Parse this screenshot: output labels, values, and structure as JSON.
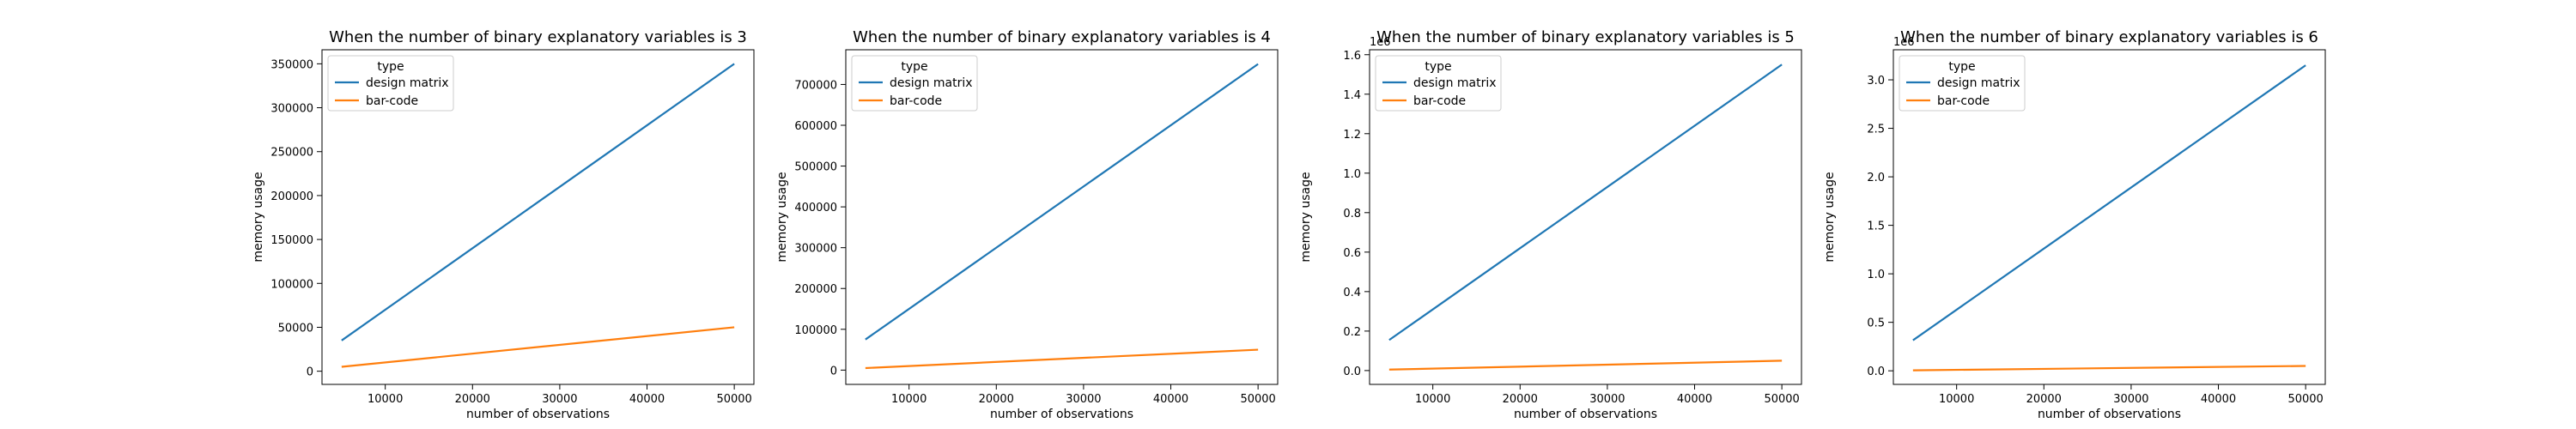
{
  "chart_data": [
    {
      "type": "line",
      "title": "When the number of binary explanatory variables is 3",
      "xlabel": "number of observations",
      "ylabel": "memory usage",
      "offset_text": "",
      "xlim": [
        2750,
        52250
      ],
      "ylim": [
        -15000,
        366000
      ],
      "xticks": [
        10000,
        20000,
        30000,
        40000,
        50000
      ],
      "xtick_labels": [
        "10000",
        "20000",
        "30000",
        "40000",
        "50000"
      ],
      "yticks": [
        0,
        50000,
        100000,
        150000,
        200000,
        250000,
        300000,
        350000
      ],
      "ytick_labels": [
        "0",
        "50000",
        "100000",
        "150000",
        "200000",
        "250000",
        "300000",
        "350000"
      ],
      "legend": {
        "title": "type",
        "placement": "upper-left"
      },
      "grid": false,
      "series": [
        {
          "name": "design matrix",
          "color": "#1f77b4",
          "x": [
            5000,
            50000
          ],
          "y": [
            35000,
            350000
          ]
        },
        {
          "name": "bar-code",
          "color": "#ff7f0e",
          "x": [
            5000,
            50000
          ],
          "y": [
            5000,
            50000
          ]
        }
      ]
    },
    {
      "type": "line",
      "title": "When the number of binary explanatory variables is 4",
      "xlabel": "number of observations",
      "ylabel": "memory usage",
      "offset_text": "",
      "xlim": [
        2750,
        52250
      ],
      "ylim": [
        -35000,
        785000
      ],
      "xticks": [
        10000,
        20000,
        30000,
        40000,
        50000
      ],
      "xtick_labels": [
        "10000",
        "20000",
        "30000",
        "40000",
        "50000"
      ],
      "yticks": [
        0,
        100000,
        200000,
        300000,
        400000,
        500000,
        600000,
        700000
      ],
      "ytick_labels": [
        "0",
        "100000",
        "200000",
        "300000",
        "400000",
        "500000",
        "600000",
        "700000"
      ],
      "legend": {
        "title": "type",
        "placement": "upper-left"
      },
      "grid": false,
      "series": [
        {
          "name": "design matrix",
          "color": "#1f77b4",
          "x": [
            5000,
            50000
          ],
          "y": [
            75000,
            750000
          ]
        },
        {
          "name": "bar-code",
          "color": "#ff7f0e",
          "x": [
            5000,
            50000
          ],
          "y": [
            5000,
            50000
          ]
        }
      ]
    },
    {
      "type": "line",
      "title": "When the number of binary explanatory variables is 5",
      "xlabel": "number of observations",
      "ylabel": "memory usage",
      "offset_text": "1e6",
      "xlim": [
        2750,
        52250
      ],
      "ylim": [
        -0.07,
        1.625
      ],
      "xticks": [
        10000,
        20000,
        30000,
        40000,
        50000
      ],
      "xtick_labels": [
        "10000",
        "20000",
        "30000",
        "40000",
        "50000"
      ],
      "yticks": [
        0.0,
        0.2,
        0.4,
        0.6,
        0.8,
        1.0,
        1.2,
        1.4,
        1.6
      ],
      "ytick_labels": [
        "0.0",
        "0.2",
        "0.4",
        "0.6",
        "0.8",
        "1.0",
        "1.2",
        "1.4",
        "1.6"
      ],
      "legend": {
        "title": "type",
        "placement": "upper-left"
      },
      "grid": false,
      "series": [
        {
          "name": "design matrix",
          "color": "#1f77b4",
          "x": [
            5000,
            50000
          ],
          "y": [
            0.155,
            1.55
          ]
        },
        {
          "name": "bar-code",
          "color": "#ff7f0e",
          "x": [
            5000,
            50000
          ],
          "y": [
            0.005,
            0.05
          ]
        }
      ]
    },
    {
      "type": "line",
      "title": "When the number of binary explanatory variables is 6",
      "xlabel": "number of observations",
      "ylabel": "memory usage",
      "offset_text": "1e6",
      "xlim": [
        2750,
        52250
      ],
      "ylim": [
        -0.14,
        3.31
      ],
      "xticks": [
        10000,
        20000,
        30000,
        40000,
        50000
      ],
      "xtick_labels": [
        "10000",
        "20000",
        "30000",
        "40000",
        "50000"
      ],
      "yticks": [
        0.0,
        0.5,
        1.0,
        1.5,
        2.0,
        2.5,
        3.0
      ],
      "ytick_labels": [
        "0.0",
        "0.5",
        "1.0",
        "1.5",
        "2.0",
        "2.5",
        "3.0"
      ],
      "legend": {
        "title": "type",
        "placement": "upper-left"
      },
      "grid": false,
      "series": [
        {
          "name": "design matrix",
          "color": "#1f77b4",
          "x": [
            5000,
            50000
          ],
          "y": [
            0.315,
            3.15
          ]
        },
        {
          "name": "bar-code",
          "color": "#ff7f0e",
          "x": [
            5000,
            50000
          ],
          "y": [
            0.005,
            0.05
          ]
        }
      ]
    }
  ]
}
